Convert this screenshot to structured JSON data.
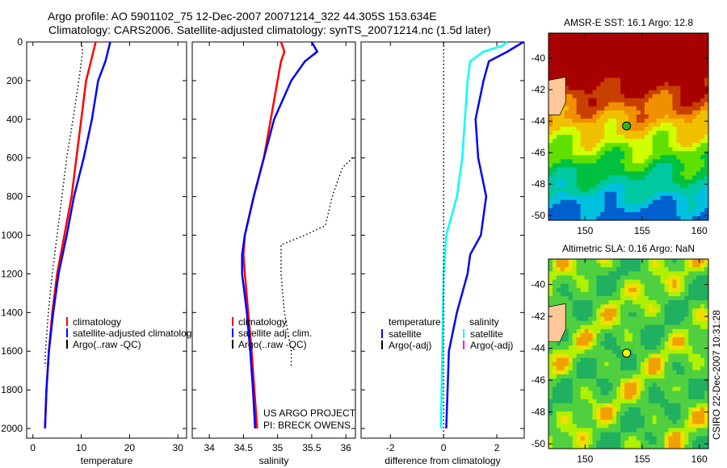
{
  "title_line1": "Argo profile: AO 5901102_75 12-Dec-2007 20071214_322 44.305S 153.634E",
  "title_line2": "Climatology: CARS2006. Satellite-adjusted climatology: synTS_20071214.nc (1.5d later)",
  "side_label": "CSIRO 22-Dec-2007 10:31:28",
  "project_label": [
    "US ARGO PROJECT",
    "PI: BRECK OWENS"
  ],
  "chart_data": [
    {
      "type": "line",
      "xlabel": "temperature",
      "ylabel": "",
      "xlim": [
        -1.3,
        31.8
      ],
      "ylim": [
        0,
        2050
      ],
      "xticks": [
        0,
        10,
        20,
        30
      ],
      "yticks": [
        0,
        200,
        400,
        600,
        800,
        1000,
        1200,
        1400,
        1600,
        1800,
        2000
      ],
      "legend": [
        "climatology",
        "satellite-adjusted climatology",
        "Argo(..raw -QC)"
      ],
      "series": [
        {
          "name": "climatology",
          "color": "#ff0000",
          "style": "solid",
          "depth": [
            0,
            50,
            100,
            200,
            400,
            600,
            800,
            1000,
            1200,
            1400,
            1600,
            1800,
            2000
          ],
          "values": [
            13,
            12.5,
            12,
            11,
            10,
            9,
            8,
            6.5,
            5,
            4,
            3.3,
            2.8,
            2.5
          ]
        },
        {
          "name": "satellite-adjusted climatology",
          "color": "#0000ff",
          "style": "solid",
          "depth": [
            0,
            50,
            100,
            200,
            400,
            600,
            800,
            1000,
            1200,
            1400,
            1600,
            1800,
            2000
          ],
          "values": [
            16,
            15.5,
            15,
            13.5,
            12.2,
            10.5,
            8.5,
            7,
            5.3,
            4.2,
            3.3,
            2.8,
            2.5
          ]
        },
        {
          "name": "Argo(..raw -QC)",
          "color": "#000000",
          "style": "dotted",
          "depth": [
            0,
            50,
            200,
            400,
            600,
            800,
            1000,
            1200,
            1400,
            1600,
            1680
          ],
          "values": [
            10,
            10.3,
            9.5,
            8.3,
            7,
            6,
            5,
            4,
            3.2,
            2.6,
            2.5
          ]
        }
      ]
    },
    {
      "type": "line",
      "xlabel": "salinity",
      "xlim": [
        33.75,
        36.14
      ],
      "ylim": [
        0,
        2050
      ],
      "xticks": [
        34,
        34.5,
        35,
        35.5,
        36
      ],
      "legend": [
        "climatology",
        "satellite adj. clim.",
        "Argo(..raw -QC)"
      ],
      "series": [
        {
          "name": "climatology",
          "color": "#ff0000",
          "style": "solid",
          "depth": [
            0,
            50,
            100,
            200,
            400,
            600,
            800,
            1000,
            1100,
            1200,
            1400,
            1600,
            1800,
            2000
          ],
          "values": [
            35.05,
            35.1,
            35.05,
            35.0,
            34.9,
            34.8,
            34.65,
            34.52,
            34.5,
            34.52,
            34.57,
            34.62,
            34.66,
            34.7
          ]
        },
        {
          "name": "satellite adj. clim.",
          "color": "#0000ff",
          "style": "solid",
          "depth": [
            0,
            50,
            100,
            200,
            400,
            600,
            800,
            1000,
            1100,
            1200,
            1400,
            1600,
            1800,
            2000
          ],
          "values": [
            35.5,
            35.58,
            35.4,
            35.2,
            34.95,
            34.8,
            34.65,
            34.52,
            34.48,
            34.48,
            34.55,
            34.6,
            34.64,
            34.67
          ]
        },
        {
          "name": "Argo(..raw -QC)",
          "color": "#000000",
          "style": "dotted",
          "depth": [
            600,
            650,
            800,
            950,
            1000,
            1050,
            1200,
            1400,
            1600,
            1680
          ],
          "values": [
            36.1,
            35.95,
            35.8,
            35.7,
            35.4,
            35.05,
            35.05,
            35.1,
            35.2,
            35.2
          ]
        }
      ]
    },
    {
      "type": "line",
      "xlabel": "difference from climatology",
      "xlim": [
        -3.1,
        3.03
      ],
      "ylim": [
        0,
        2050
      ],
      "xticks": [
        -2,
        0,
        2
      ],
      "legend_temperature": {
        "title": "temperature",
        "items": [
          "satellite",
          "Argo(-adj)"
        ]
      },
      "legend_salinity": {
        "title": "salinity",
        "items": [
          "satellite",
          "Argo(-adj)"
        ]
      },
      "series": [
        {
          "name": "temperature satellite",
          "color": "#0000ff",
          "style": "solid",
          "depth": [
            0,
            50,
            100,
            200,
            400,
            600,
            800,
            1000,
            1100,
            1200,
            1400,
            1600,
            1800,
            2000
          ],
          "values": [
            3,
            2.4,
            1.7,
            1.5,
            1.2,
            1.3,
            1.6,
            1.4,
            1.0,
            0.9,
            0.5,
            0.2,
            0.15,
            0.1
          ]
        },
        {
          "name": "salinity satellite",
          "color": "#00ffff",
          "style": "solid",
          "depth": [
            0,
            20,
            50,
            100,
            200,
            400,
            600,
            800,
            1000,
            1200,
            1600,
            2000
          ],
          "values": [
            2.4,
            2.2,
            1.5,
            1.0,
            0.9,
            0.8,
            0.7,
            0.5,
            0.1,
            0,
            -0.05,
            -0.1
          ]
        },
        {
          "name": "zero line",
          "color": "#000000",
          "style": "dotted",
          "depth": [
            0,
            2050
          ],
          "values": [
            0,
            0
          ]
        }
      ]
    },
    {
      "type": "heatmap",
      "title": "AMSR-E SST: 16.1 Argo: 12.8",
      "xlim": [
        146.8,
        160.8
      ],
      "ylim": [
        -50.3,
        -38.4
      ],
      "xticks": [
        150,
        155,
        160
      ],
      "yticks": [
        -40,
        -42,
        -44,
        -46,
        -48,
        -50
      ],
      "marker": {
        "lon": 153.634,
        "lat": -44.305,
        "color": "#22bb22"
      }
    },
    {
      "type": "heatmap",
      "title": "Altimetric SLA: 0.16 Argo: NaN",
      "xlim": [
        146.8,
        160.8
      ],
      "ylim": [
        -50.3,
        -38.4
      ],
      "xticks": [
        150,
        155,
        160
      ],
      "yticks": [
        -40,
        -42,
        -44,
        -46,
        -48,
        -50
      ],
      "marker": {
        "lon": 153.634,
        "lat": -44.305,
        "color": "#ffff00"
      }
    }
  ]
}
